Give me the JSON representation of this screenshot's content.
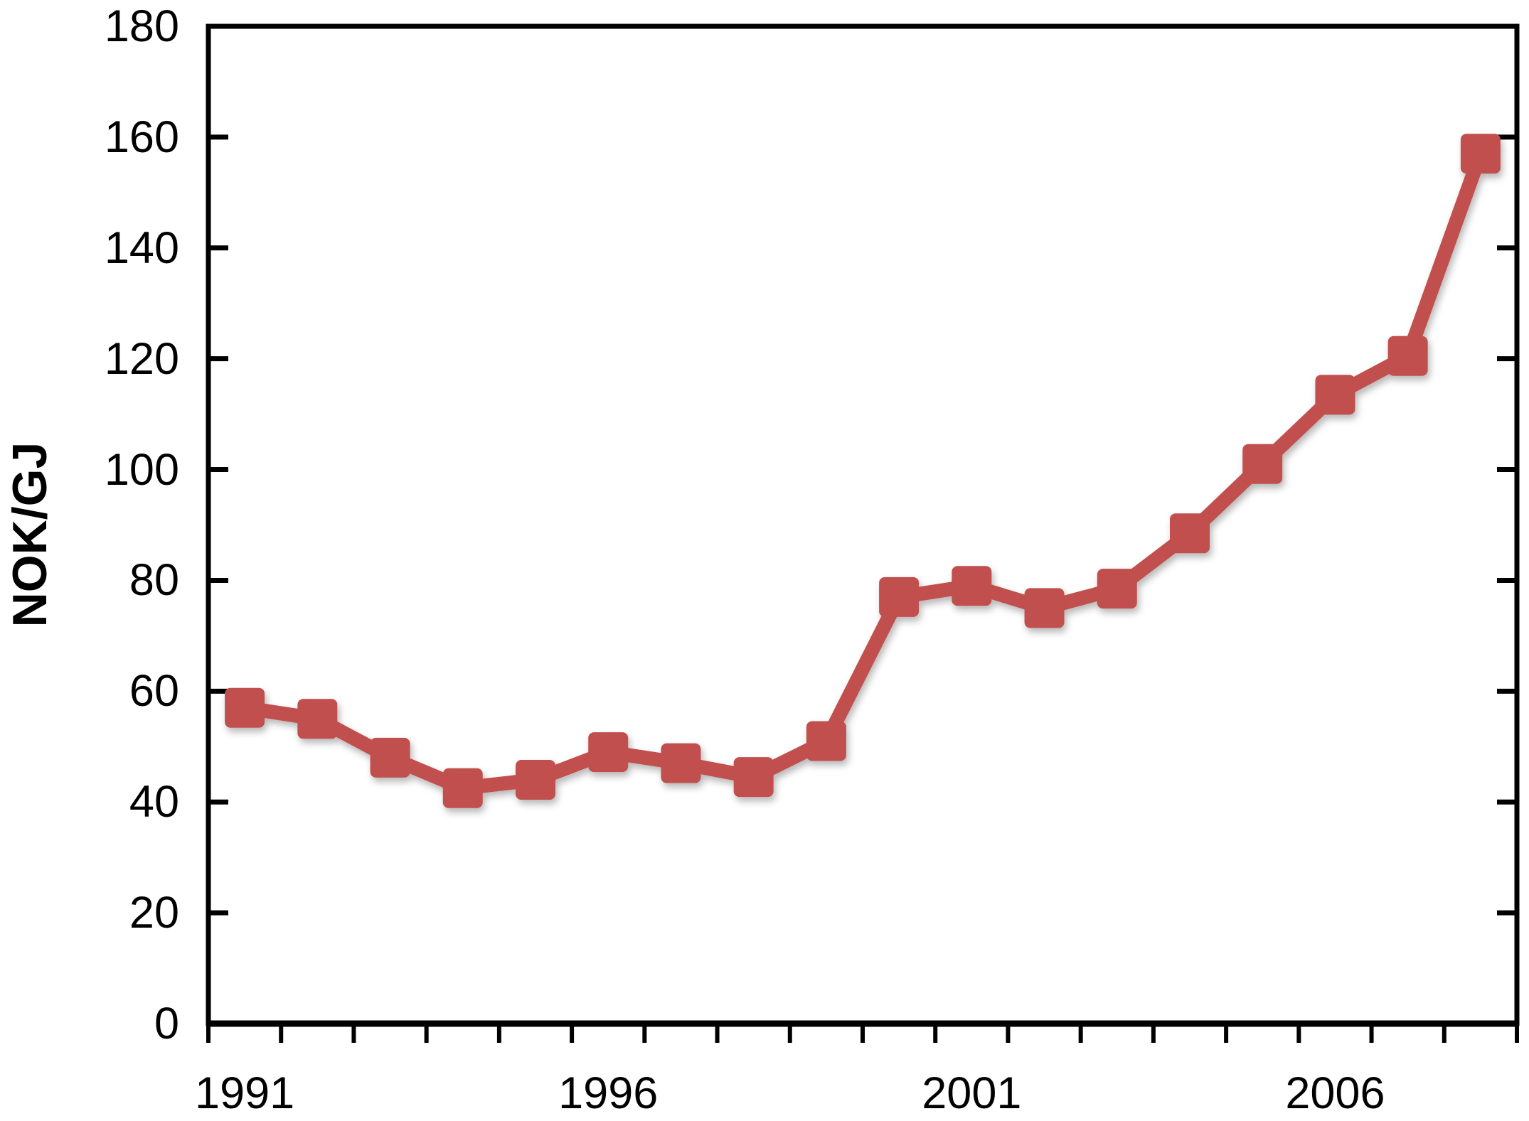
{
  "chart_data": {
    "type": "line",
    "title": "",
    "xlabel": "",
    "ylabel": "NOK/GJ",
    "x": [
      1991,
      1992,
      1993,
      1994,
      1995,
      1996,
      1997,
      1998,
      1999,
      2000,
      2001,
      2002,
      2003,
      2004,
      2005,
      2006,
      2007,
      2008
    ],
    "values": [
      57,
      55,
      48,
      42.5,
      44,
      49,
      47,
      44.5,
      51,
      77,
      79,
      75,
      78.5,
      88.5,
      101,
      113.5,
      120.5,
      157
    ],
    "ylim": [
      0,
      180
    ],
    "ytick_step": 20,
    "xtick_labels": [
      1991,
      1996,
      2001,
      2006
    ],
    "grid": false,
    "legend": "none",
    "marker": "rounded-square",
    "line_color": "#C0504D",
    "marker_color": "#C0504D",
    "axis_color": "#000000",
    "background_color": "#FFFFFF"
  }
}
